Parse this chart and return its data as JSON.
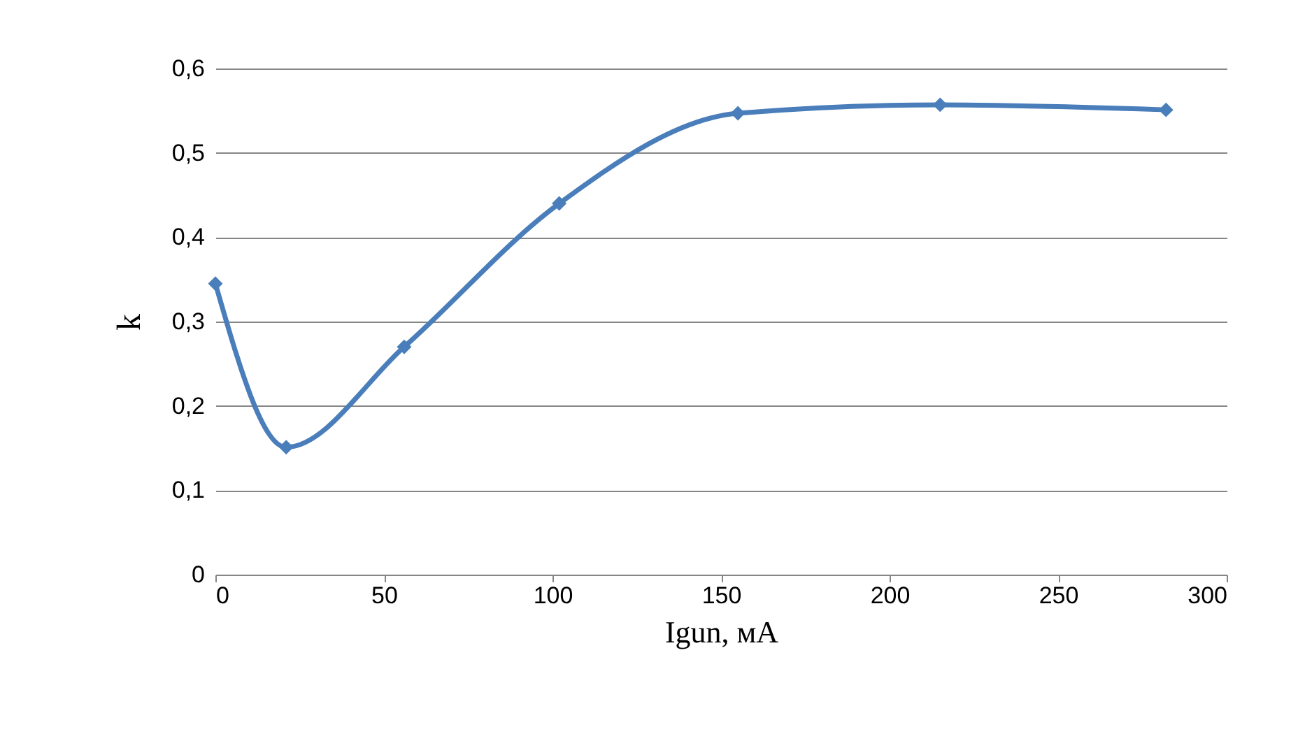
{
  "chart_data": {
    "type": "line",
    "xlabel": "Igun,  мА",
    "ylabel": "k",
    "x": [
      0,
      21,
      56,
      102,
      155,
      215,
      282
    ],
    "series": [
      {
        "color": "#4a7ebb",
        "values": [
          0.345,
          0.151,
          0.27,
          0.44,
          0.547,
          0.557,
          0.551
        ]
      }
    ],
    "xlim": [
      0,
      300
    ],
    "xticks": [
      0,
      50,
      100,
      150,
      200,
      250,
      300
    ],
    "ylim": [
      0,
      0.6
    ],
    "yticks": [
      0,
      {
        "value": 0.1,
        "label": "0,1"
      },
      {
        "value": 0.2,
        "label": "0,2"
      },
      {
        "value": 0.3,
        "label": "0,3"
      },
      {
        "value": 0.4,
        "label": "0,4"
      },
      {
        "value": 0.5,
        "label": "0,5"
      },
      {
        "value": 0.6,
        "label": "0,6"
      }
    ],
    "grid": "y",
    "marker": "diamond",
    "line_style": "solid"
  }
}
